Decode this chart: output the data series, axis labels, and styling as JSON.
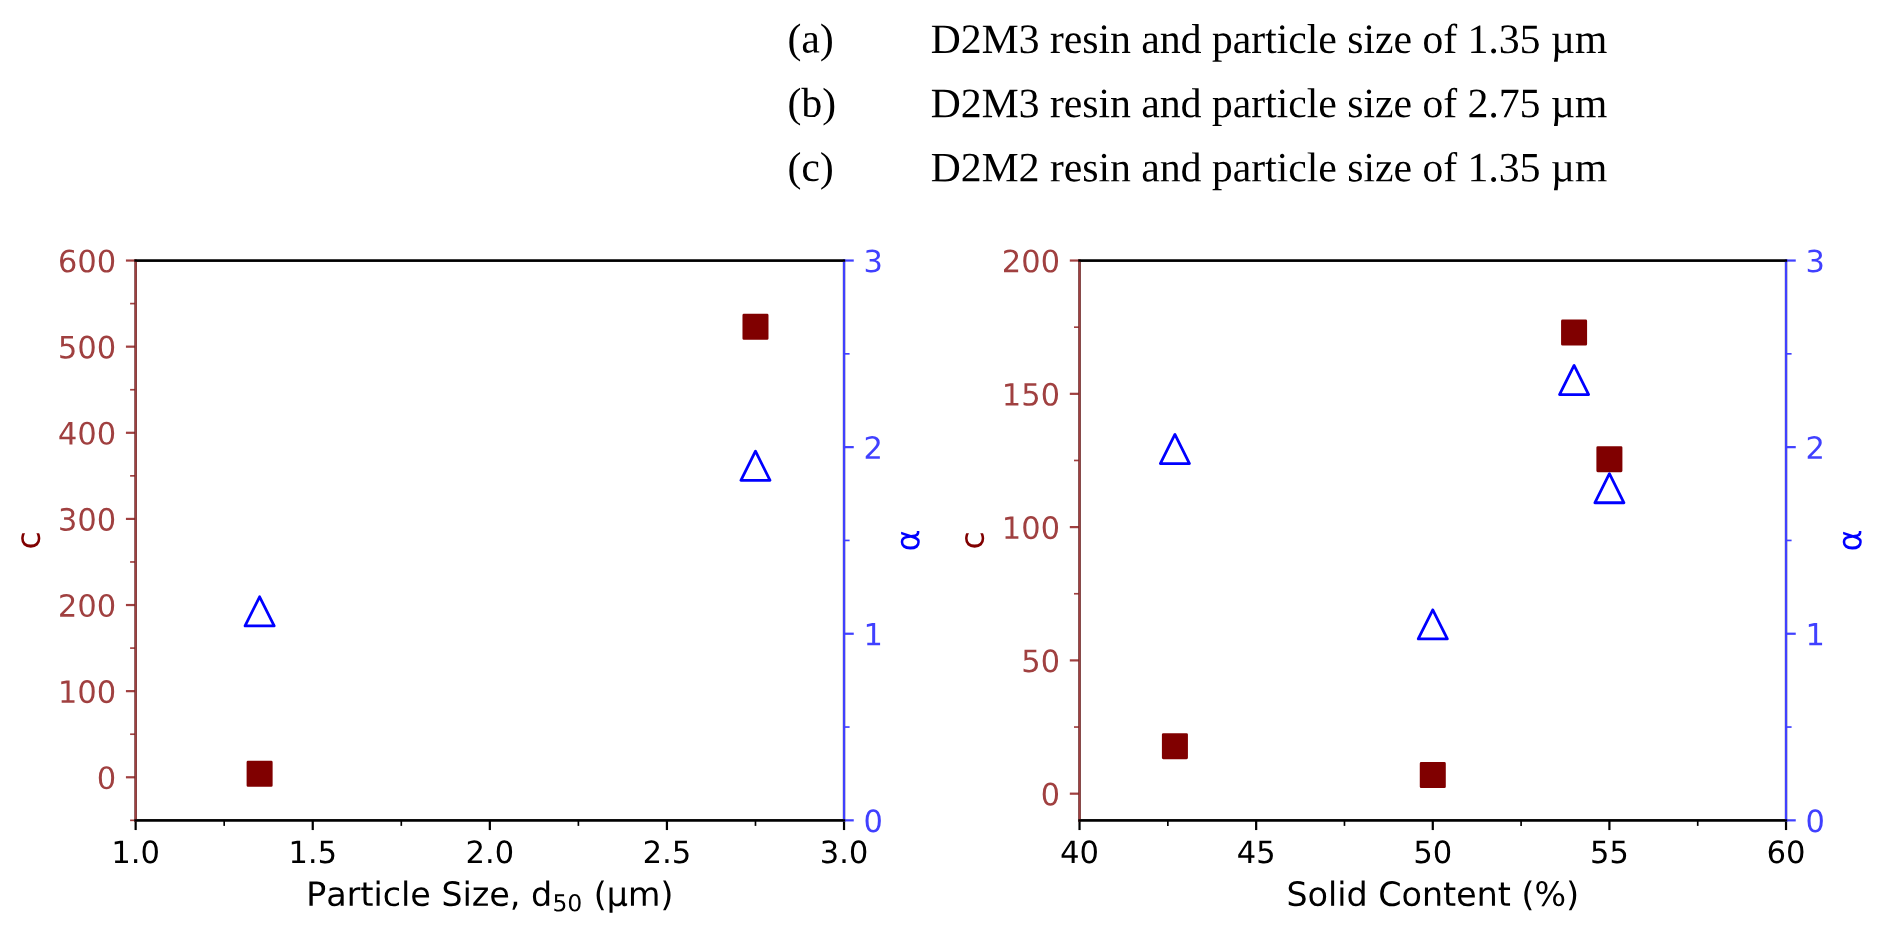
{
  "chart_data": [
    {
      "type": "scatter",
      "xlabel": "Particle Size, d$_{50}$ (µm)",
      "ylabel": "c",
      "y2label": "α",
      "annotations": [
        "(a)\tD2M3 resin and particle size of 1.35 µm",
        "(b)\tD2M3 resin and particle size of 2.75 µm",
        "(c)\tD2M2 resin and particle size of 1.35 µm"
      ],
      "x": [
        1.35,
        2.75
      ],
      "series": [
        {
          "color": "#800000",
          "marker": "square",
          "values": [
            4,
            523
          ]
        },
        {
          "color": "#0000ff",
          "marker": "triangle",
          "axis": "y2",
          "values": [
            1.12,
            1.9
          ]
        }
      ],
      "xlim": [
        1.0,
        3.0
      ],
      "xticks": [
        {
          "value": 1.0,
          "label": "1.0"
        },
        {
          "value": 1.5,
          "label": "1.5"
        },
        {
          "value": 2.0,
          "label": "2.0"
        },
        {
          "value": 2.5,
          "label": "2.5"
        },
        {
          "value": 3.0,
          "label": "3.0"
        }
      ],
      "ylim": [
        -50,
        600
      ],
      "yticks": [
        0,
        100,
        200,
        300,
        400,
        500,
        600
      ],
      "y2lim": [
        0,
        3
      ],
      "y2ticks": [
        0,
        1,
        2,
        3
      ]
    },
    {
      "type": "scatter",
      "xlabel": "Solid Content (%)",
      "ylabel": "c",
      "y2label": "α",
      "x": [
        42.7,
        50,
        54,
        55
      ],
      "series": [
        {
          "color": "#800000",
          "marker": "square",
          "values": [
            17.8,
            7,
            173,
            125.5
          ]
        },
        {
          "color": "#0000ff",
          "marker": "triangle",
          "axis": "y2",
          "values": [
            1.99,
            1.05,
            2.36,
            1.78
          ]
        }
      ],
      "xlim": [
        40,
        60
      ],
      "xticks": [
        40,
        45,
        50,
        55,
        60
      ],
      "ylim": [
        -10,
        200
      ],
      "yticks": [
        0,
        50,
        100,
        150,
        200
      ],
      "y2lim": [
        0,
        3
      ],
      "y2ticks": [
        0,
        1,
        2,
        3
      ]
    }
  ]
}
